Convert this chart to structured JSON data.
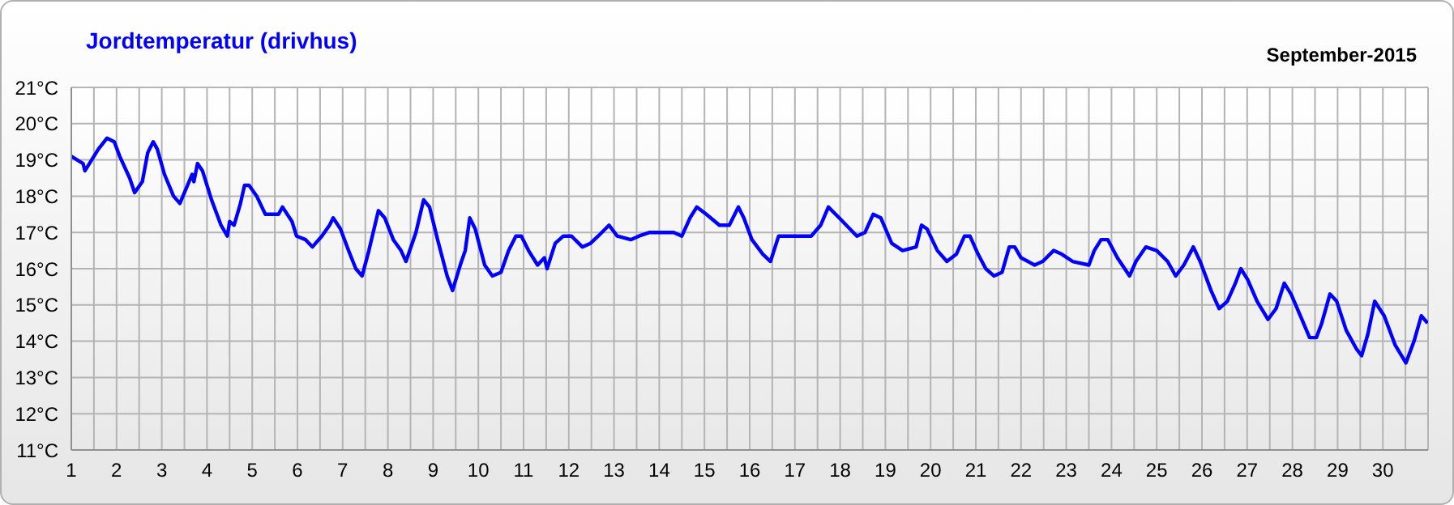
{
  "chart_data": {
    "type": "line",
    "title": "Jordtemperatur (drivhus)",
    "subtitle": "September-2015",
    "xlim": [
      1,
      31
    ],
    "xticks": [
      1,
      {
        "value": 1.5,
        "label": null
      },
      2,
      {
        "value": 2.5,
        "label": null
      },
      3,
      {
        "value": 3.5,
        "label": null
      },
      4,
      {
        "value": 4.5,
        "label": null
      },
      5,
      {
        "value": 5.5,
        "label": null
      },
      6,
      {
        "value": 6.5,
        "label": null
      },
      7,
      {
        "value": 7.5,
        "label": null
      },
      8,
      {
        "value": 8.5,
        "label": null
      },
      9,
      {
        "value": 9.5,
        "label": null
      },
      10,
      {
        "value": 10.5,
        "label": null
      },
      11,
      {
        "value": 11.5,
        "label": null
      },
      12,
      {
        "value": 12.5,
        "label": null
      },
      13,
      {
        "value": 13.5,
        "label": null
      },
      14,
      {
        "value": 14.5,
        "label": null
      },
      15,
      {
        "value": 15.5,
        "label": null
      },
      16,
      {
        "value": 16.5,
        "label": null
      },
      17,
      {
        "value": 17.5,
        "label": null
      },
      18,
      {
        "value": 18.5,
        "label": null
      },
      19,
      {
        "value": 19.5,
        "label": null
      },
      20,
      {
        "value": 20.5,
        "label": null
      },
      21,
      {
        "value": 21.5,
        "label": null
      },
      22,
      {
        "value": 22.5,
        "label": null
      },
      23,
      {
        "value": 23.5,
        "label": null
      },
      24,
      {
        "value": 24.5,
        "label": null
      },
      25,
      {
        "value": 25.5,
        "label": null
      },
      26,
      {
        "value": 26.5,
        "label": null
      },
      27,
      {
        "value": 27.5,
        "label": null
      },
      28,
      {
        "value": 28.5,
        "label": null
      },
      29,
      {
        "value": 29.5,
        "label": null
      },
      30,
      {
        "value": 30.5,
        "label": null
      }
    ],
    "ylim": [
      11,
      21
    ],
    "yticks": [
      {
        "value": 11,
        "label": "11°C"
      },
      {
        "value": 12,
        "label": "12°C"
      },
      {
        "value": 13,
        "label": "13°C"
      },
      {
        "value": 14,
        "label": "14°C"
      },
      {
        "value": 15,
        "label": "15°C"
      },
      {
        "value": 16,
        "label": "16°C"
      },
      {
        "value": 17,
        "label": "17°C"
      },
      {
        "value": 18,
        "label": "18°C"
      },
      {
        "value": 19,
        "label": "19°C"
      },
      {
        "value": 20,
        "label": "20°C"
      },
      {
        "value": 21,
        "label": "21°C"
      }
    ],
    "grid": true,
    "marker": "none",
    "line_style": "solid",
    "series": [
      {
        "color": "#0000ff",
        "x": [
          1.0,
          1.26,
          1.3,
          1.6,
          1.79,
          1.95,
          2.07,
          2.29,
          2.4,
          2.57,
          2.69,
          2.81,
          2.9,
          3.06,
          3.26,
          3.4,
          3.57,
          3.67,
          3.71,
          3.79,
          3.9,
          4.1,
          4.31,
          4.45,
          4.5,
          4.6,
          4.74,
          4.83,
          4.93,
          5.1,
          5.29,
          5.58,
          5.67,
          5.88,
          5.98,
          6.18,
          6.33,
          6.54,
          6.71,
          6.79,
          6.95,
          7.13,
          7.29,
          7.43,
          7.58,
          7.79,
          7.93,
          8.12,
          8.29,
          8.4,
          8.62,
          8.79,
          8.92,
          9.1,
          9.31,
          9.43,
          9.6,
          9.71,
          9.81,
          9.93,
          10.14,
          10.31,
          10.5,
          10.67,
          10.83,
          10.95,
          11.11,
          11.31,
          11.46,
          11.52,
          11.7,
          11.88,
          12.06,
          12.3,
          12.48,
          12.65,
          12.89,
          13.07,
          13.37,
          13.55,
          13.79,
          14.02,
          14.32,
          14.5,
          14.68,
          14.83,
          15.04,
          15.33,
          15.55,
          15.75,
          15.87,
          16.05,
          16.29,
          16.46,
          16.64,
          16.88,
          17.36,
          17.57,
          17.74,
          17.98,
          18.37,
          18.55,
          18.73,
          18.9,
          19.14,
          19.38,
          19.68,
          19.8,
          19.92,
          20.15,
          20.36,
          20.57,
          20.75,
          20.87,
          21.05,
          21.22,
          21.4,
          21.58,
          21.74,
          21.86,
          22.0,
          22.3,
          22.48,
          22.72,
          22.9,
          23.14,
          23.5,
          23.62,
          23.77,
          23.92,
          24.13,
          24.4,
          24.54,
          24.76,
          25.0,
          25.24,
          25.42,
          25.6,
          25.81,
          25.96,
          26.2,
          26.38,
          26.56,
          26.74,
          26.86,
          27.01,
          27.22,
          27.46,
          27.64,
          27.82,
          27.97,
          28.21,
          28.38,
          28.53,
          28.65,
          28.83,
          28.98,
          29.19,
          29.41,
          29.53,
          29.67,
          29.82,
          30.03,
          30.27,
          30.51,
          30.69,
          30.85,
          30.99
        ],
        "values": [
          19.1,
          18.9,
          18.7,
          19.3,
          19.6,
          19.5,
          19.1,
          18.5,
          18.1,
          18.4,
          19.2,
          19.5,
          19.3,
          18.6,
          18.0,
          17.8,
          18.3,
          18.6,
          18.4,
          18.9,
          18.7,
          17.9,
          17.2,
          16.9,
          17.3,
          17.2,
          17.8,
          18.3,
          18.3,
          18.0,
          17.5,
          17.5,
          17.7,
          17.3,
          16.9,
          16.8,
          16.6,
          16.9,
          17.2,
          17.4,
          17.1,
          16.5,
          16.0,
          15.8,
          16.5,
          17.6,
          17.4,
          16.8,
          16.5,
          16.2,
          17.0,
          17.9,
          17.7,
          16.8,
          15.8,
          15.4,
          16.1,
          16.5,
          17.4,
          17.1,
          16.1,
          15.8,
          15.9,
          16.5,
          16.9,
          16.9,
          16.5,
          16.1,
          16.3,
          16.0,
          16.7,
          16.9,
          16.9,
          16.6,
          16.7,
          16.9,
          17.2,
          16.9,
          16.8,
          16.9,
          17.0,
          17.0,
          17.0,
          16.9,
          17.4,
          17.7,
          17.5,
          17.2,
          17.2,
          17.7,
          17.4,
          16.8,
          16.4,
          16.2,
          16.9,
          16.9,
          16.9,
          17.2,
          17.7,
          17.4,
          16.9,
          17.0,
          17.5,
          17.4,
          16.7,
          16.5,
          16.6,
          17.2,
          17.1,
          16.5,
          16.2,
          16.4,
          16.9,
          16.9,
          16.4,
          16.0,
          15.8,
          15.9,
          16.6,
          16.6,
          16.3,
          16.1,
          16.2,
          16.5,
          16.4,
          16.2,
          16.1,
          16.5,
          16.8,
          16.8,
          16.3,
          15.8,
          16.2,
          16.6,
          16.5,
          16.2,
          15.8,
          16.1,
          16.6,
          16.2,
          15.4,
          14.9,
          15.1,
          15.6,
          16.0,
          15.7,
          15.1,
          14.6,
          14.9,
          15.6,
          15.3,
          14.6,
          14.1,
          14.1,
          14.5,
          15.3,
          15.1,
          14.3,
          13.8,
          13.6,
          14.2,
          15.1,
          14.7,
          13.9,
          13.4,
          14.0,
          14.7,
          14.5
        ]
      }
    ]
  }
}
